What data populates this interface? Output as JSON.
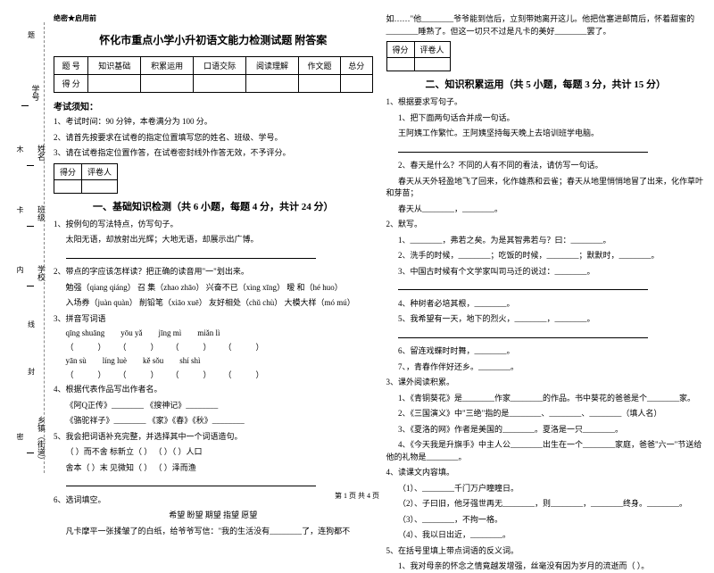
{
  "sidebar": {
    "items": [
      {
        "label": "学号",
        "dash": ""
      },
      {
        "label": "姓名",
        "dash": "木"
      },
      {
        "label": "班级",
        "dash": "卡"
      },
      {
        "label": "学校",
        "dash": "内"
      },
      {
        "label": "",
        "dash": "线"
      },
      {
        "label": "",
        "dash": "封"
      },
      {
        "label": "乡镇（街道）",
        "dash": "密"
      }
    ],
    "top_dash": "题"
  },
  "header": {
    "confidential": "绝密★启用前",
    "title": "怀化市重点小学小升初语文能力检测试题 附答案"
  },
  "score_table": {
    "headers": [
      "题 号",
      "知识基础",
      "积累运用",
      "口语交际",
      "阅读理解",
      "作文题",
      "总分"
    ],
    "row_label": "得 分"
  },
  "notice": {
    "title": "考试须知：",
    "items": [
      "1、考试时间：90 分钟，本卷满分为 100 分。",
      "2、请首先按要求在试卷的指定位置填写您的姓名、班级、学号。",
      "3、请在试卷指定位置作答，在试卷密封线外作答无效，不予评分。"
    ]
  },
  "scorer": {
    "c1": "得分",
    "c2": "评卷人"
  },
  "section1": {
    "title": "一、基础知识检测（共 6 小题，每题 4 分，共计 24 分）",
    "q1": "1、按例句的写法特点，仿写句子。",
    "q1_ex": "太阳无语，却放射出光辉；大地无语，却展示出广博。",
    "q2": "2、带点的字应该怎样读？把正确的读音用\"一\"划出来。",
    "q2_words": "勉强（qiang qiáng）    召 集（zhao zhāo）    兴奋不已（xìng xīng）    暧 和（hé huo）",
    "q2_words2": "入场券（juàn quàn）    削铅笔（xiāo xuē）    友好相处（chǔ chù）    大模大样（mó mú）",
    "q3": "3、拼音写词语",
    "q3_p1": [
      "qīng shuāng",
      "yōu yǎ",
      "jīng mì",
      "miǎn lì"
    ],
    "q3_p2": [
      "yān sù",
      "líng luè",
      "kě sǒu",
      "shí shì"
    ],
    "q4": "4、根据代表作品写出作者名。",
    "q4_r1": "《阿Q正传》________    《搜神记》________",
    "q4_r2": "《骆驼祥子》________    《家》《春》《秋》________",
    "q5": "5、我会把词语补充完整，并选择其中一个词语造句。",
    "q5_r1": "（ ）而不舍    标新立（ ）    （ ）（ ）人口",
    "q5_r2": "舍本（ ）末    见微知（ ）    （ ）泽而渔",
    "q6": "6、选词填空。",
    "q6_words": "希望    盼望    期望    指望    愿望",
    "q6_s": "凡卡摩平一张揉皱了的白纸，给爷爷写信：\"我的生活没有________了，连狗都不"
  },
  "col2": {
    "cont": "如……\"他________爷爷能到信后，立刻带她离开这儿。他把信塞进邮筒后，怀着甜蜜的________睡熟了。但这一切只不过是凡卡的美好________罢了。",
    "section2_title": "二、知识积累运用（共 5 小题，每题 3 分，共计 15 分）",
    "q1": "1、根据要求写句子。",
    "q1_1": "1、把下面两句话合并成一句话。",
    "q1_1s": "王阿姨工作繁忙。王阿姨坚持每天晚上去培训班学电脑。",
    "q1_2": "2、春天是什么？不同的人有不同的看法，请仿写一句话。",
    "q1_2s": "春天从天外轻盈地飞了回来，化作雄燕和云雀；春天从地里悄悄地冒了出来，化作草叶和芽苗；",
    "q1_2s2": "春天从________，________。",
    "q2": "2、默写。",
    "q2_1": "1、________，弗若之矣。为是其智弗若与？曰：________。",
    "q2_2": "2、洗手的时候，________；吃饭的时候，________；默默时，________。",
    "q3": "3、中国古时候有个文学家叫司马迁的说过：________。",
    "q4": "4、种树者必培其根，________。",
    "q5": "5、我希望有一天，地下的烈火，________，________。",
    "q6": "6、留连戏蝶时时舞，________。",
    "q7": "7、，青春作伴好还乡。________。",
    "q8": "3、课外阅读积累。",
    "q8_1": "1、《青铜葵花》是________作家________的作品。书中葵花的爸爸是个________家。",
    "q8_2": "2、《三国演义》中\"三绝\"指的是________、________、________（填人名）",
    "q8_3": "3、《夏洛的网》作者是美国的________。夏洛是一只________。",
    "q8_4": "4、《今天我是升旗手》中主人公________出生在一个________家庭，爸爸\"六一\"节送给他的礼物是________。",
    "q9": "4、读课文内容填。",
    "q9_1": "（1）、________千门万户瞳瞳日。",
    "q9_2": "（2）、子曰旧，他牙强世再无________，则________，________终身。________。",
    "q9_3": "（3）、________，不拘一格。",
    "q9_4": "（4）、我以日出近，________。",
    "q10": "5、在括号里填上带点词语的反义词。",
    "q10_1": "1、我对母亲的怀念之情竟越发增强，丝毫没有因为岁月的流逝而（    ）。"
  },
  "footer": "第 1 页 共 4 页"
}
